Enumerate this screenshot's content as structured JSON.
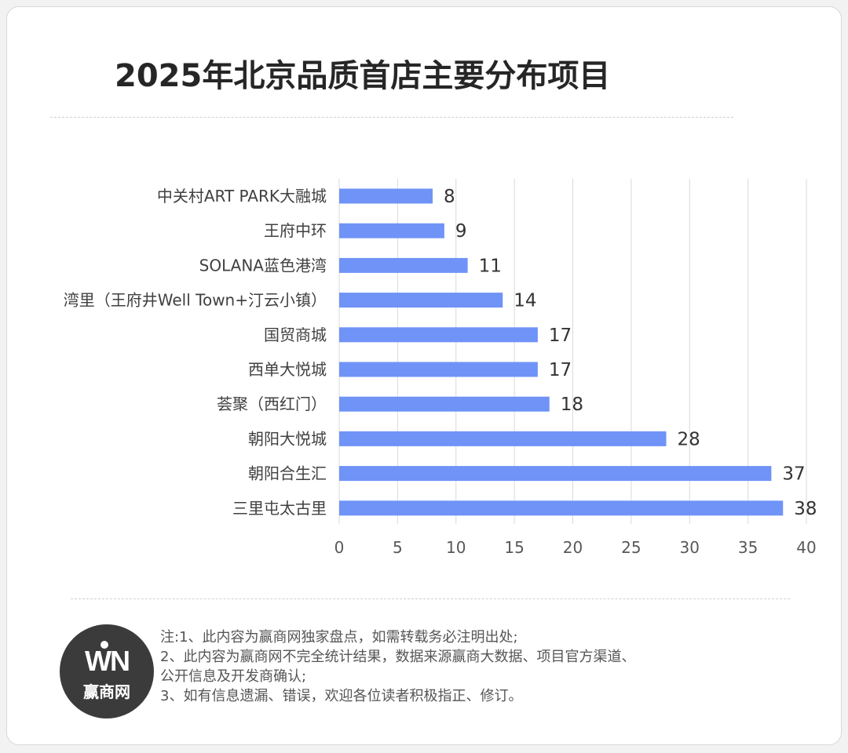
{
  "colors": {
    "bar": "#6f93f7",
    "axis_text": "#595959",
    "label_text": "#404040",
    "value_text": "#333333",
    "grid": "#d9d9d9"
  },
  "chart_data": {
    "type": "bar",
    "orientation": "horizontal",
    "title": "2025年北京品质首店主要分布项目",
    "categories": [
      "中关村ART PARK大融城",
      "王府中环",
      "SOLANA蓝色港湾",
      "湾里（王府井Well Town+汀云小镇）",
      "国贸商城",
      "西单大悦城",
      "荟聚（西红门）",
      "朝阳大悦城",
      "朝阳合生汇",
      "三里屯太古里"
    ],
    "values": [
      8,
      9,
      11,
      14,
      17,
      17,
      18,
      28,
      37,
      38
    ],
    "xlim": [
      0,
      40
    ],
    "xticks": [
      0,
      5,
      10,
      15,
      20,
      25,
      30,
      35,
      40
    ],
    "grid": true,
    "legend": "none",
    "xlabel": "",
    "ylabel": ""
  },
  "footer": {
    "logo_mark": "WN",
    "logo_text": "赢商网",
    "notes": [
      "注:1、此内容为赢商网独家盘点，如需转载务必注明出处;",
      "2、此内容为赢商网不完全统计结果，数据来源赢商大数据、项目官方渠道、",
      "公开信息及开发商确认;",
      "3、如有信息遗漏、错误，欢迎各位读者积极指正、修订。"
    ]
  }
}
